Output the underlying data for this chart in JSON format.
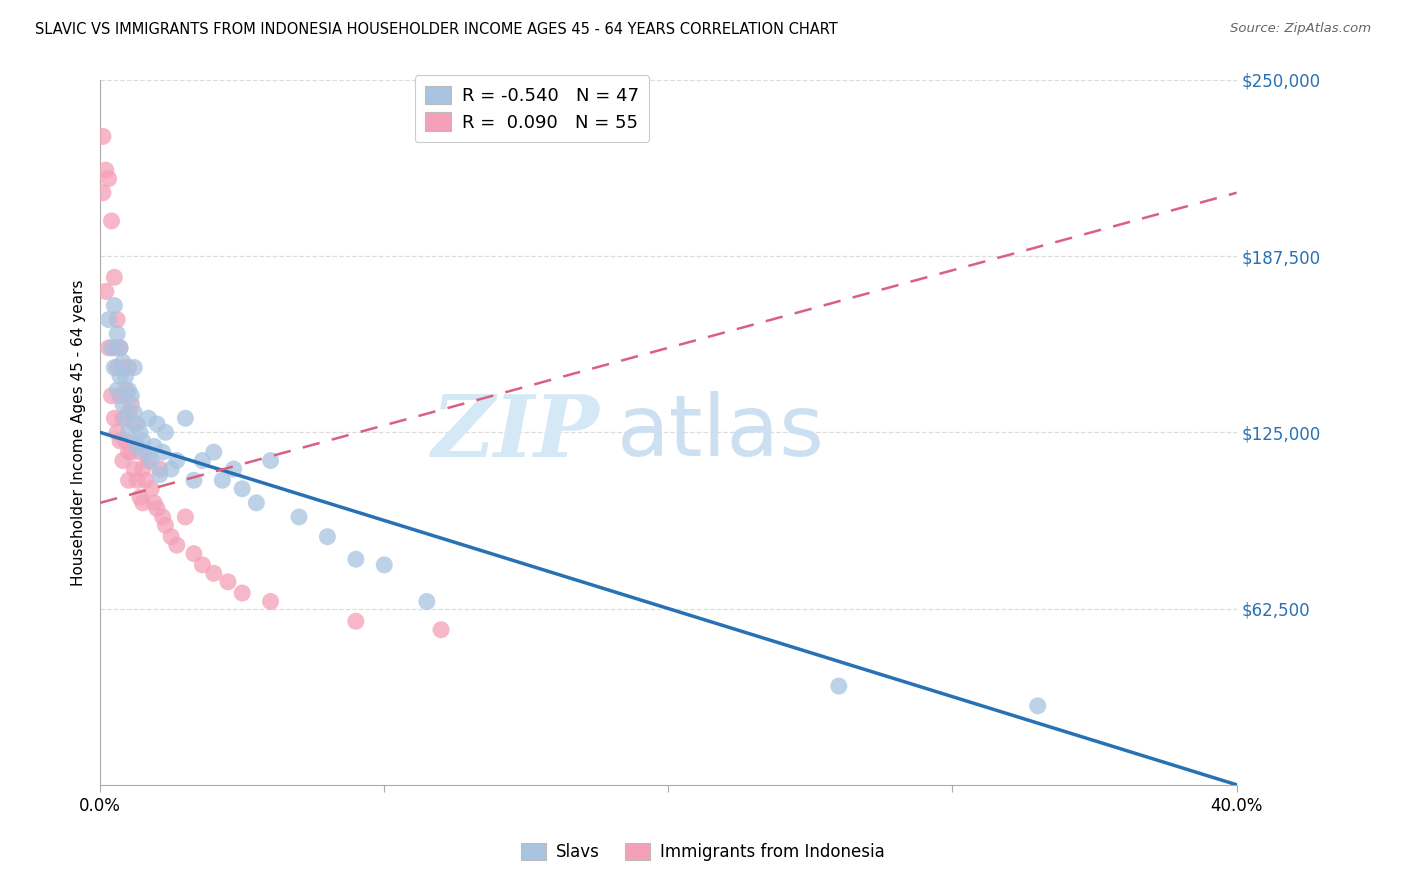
{
  "title": "SLAVIC VS IMMIGRANTS FROM INDONESIA HOUSEHOLDER INCOME AGES 45 - 64 YEARS CORRELATION CHART",
  "source": "Source: ZipAtlas.com",
  "ylabel": "Householder Income Ages 45 - 64 years",
  "xlim": [
    0.0,
    0.4
  ],
  "ylim": [
    0.0,
    250000
  ],
  "xtick_positions": [
    0.0,
    0.1,
    0.2,
    0.3,
    0.4
  ],
  "xtick_labels": [
    "0.0%",
    "",
    "",
    "",
    "40.0%"
  ],
  "ytick_right_positions": [
    62500,
    125000,
    187500,
    250000
  ],
  "ytick_right_labels": [
    "$62,500",
    "$125,000",
    "$187,500",
    "$250,000"
  ],
  "legend_blue_r": "-0.540",
  "legend_blue_n": "47",
  "legend_pink_r": "0.090",
  "legend_pink_n": "55",
  "blue_scatter_color": "#a8c4e0",
  "pink_scatter_color": "#f4a0b8",
  "blue_line_color": "#2971b5",
  "pink_line_color": "#d96080",
  "grid_color": "#dddddd",
  "slavs_x": [
    0.003,
    0.004,
    0.005,
    0.005,
    0.006,
    0.006,
    0.007,
    0.007,
    0.008,
    0.008,
    0.009,
    0.009,
    0.01,
    0.01,
    0.011,
    0.012,
    0.012,
    0.013,
    0.013,
    0.014,
    0.015,
    0.016,
    0.017,
    0.018,
    0.019,
    0.02,
    0.021,
    0.022,
    0.023,
    0.025,
    0.027,
    0.03,
    0.033,
    0.036,
    0.04,
    0.043,
    0.047,
    0.05,
    0.055,
    0.06,
    0.07,
    0.08,
    0.09,
    0.1,
    0.115,
    0.26,
    0.33
  ],
  "slavs_y": [
    165000,
    155000,
    170000,
    148000,
    160000,
    140000,
    155000,
    145000,
    150000,
    135000,
    145000,
    130000,
    140000,
    125000,
    138000,
    148000,
    132000,
    128000,
    120000,
    125000,
    122000,
    118000,
    130000,
    115000,
    120000,
    128000,
    110000,
    118000,
    125000,
    112000,
    115000,
    130000,
    108000,
    115000,
    118000,
    108000,
    112000,
    105000,
    100000,
    115000,
    95000,
    88000,
    80000,
    78000,
    65000,
    35000,
    28000
  ],
  "indonesia_x": [
    0.001,
    0.001,
    0.002,
    0.002,
    0.003,
    0.003,
    0.004,
    0.004,
    0.005,
    0.005,
    0.005,
    0.006,
    0.006,
    0.006,
    0.007,
    0.007,
    0.007,
    0.008,
    0.008,
    0.008,
    0.009,
    0.009,
    0.01,
    0.01,
    0.01,
    0.01,
    0.011,
    0.011,
    0.012,
    0.012,
    0.013,
    0.013,
    0.014,
    0.014,
    0.015,
    0.015,
    0.016,
    0.017,
    0.018,
    0.019,
    0.02,
    0.021,
    0.022,
    0.023,
    0.025,
    0.027,
    0.03,
    0.033,
    0.036,
    0.04,
    0.045,
    0.05,
    0.06,
    0.09,
    0.12
  ],
  "indonesia_y": [
    230000,
    210000,
    218000,
    175000,
    215000,
    155000,
    200000,
    138000,
    180000,
    155000,
    130000,
    165000,
    148000,
    125000,
    155000,
    138000,
    122000,
    148000,
    130000,
    115000,
    140000,
    122000,
    148000,
    132000,
    118000,
    108000,
    135000,
    118000,
    128000,
    112000,
    120000,
    108000,
    118000,
    102000,
    112000,
    100000,
    108000,
    115000,
    105000,
    100000,
    98000,
    112000,
    95000,
    92000,
    88000,
    85000,
    95000,
    82000,
    78000,
    75000,
    72000,
    68000,
    65000,
    58000,
    55000
  ],
  "blue_line_x0": 0.0,
  "blue_line_y0": 125000,
  "blue_line_x1": 0.4,
  "blue_line_y1": 0,
  "pink_line_x0": 0.0,
  "pink_line_y0": 100000,
  "pink_line_x1": 0.4,
  "pink_line_y1": 210000
}
